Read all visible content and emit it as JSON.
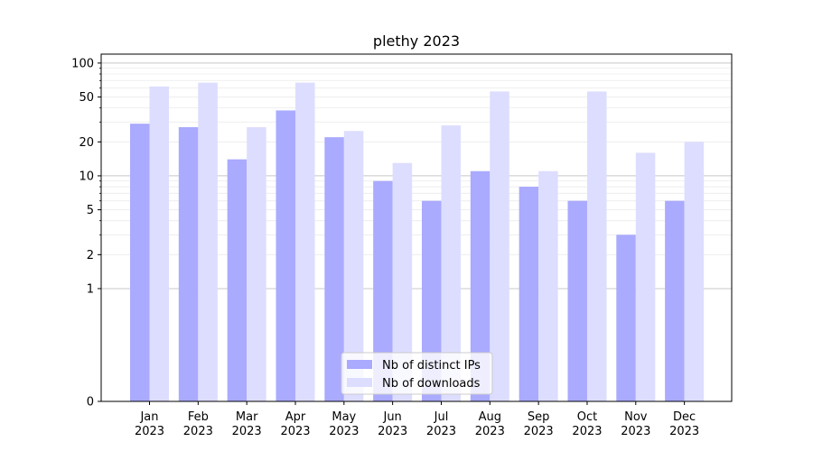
{
  "chart_data": {
    "type": "bar",
    "title": "plethy 2023",
    "xlabel": "",
    "ylabel": "",
    "y_scale": "symlog",
    "ylim": [
      0,
      120
    ],
    "yticks": [
      0,
      1,
      2,
      5,
      10,
      20,
      50,
      100
    ],
    "grid": true,
    "legend_position": "bottom-center",
    "categories": [
      "Jan\n2023",
      "Feb\n2023",
      "Mar\n2023",
      "Apr\n2023",
      "May\n2023",
      "Jun\n2023",
      "Jul\n2023",
      "Aug\n2023",
      "Sep\n2023",
      "Oct\n2023",
      "Nov\n2023",
      "Dec\n2023"
    ],
    "series": [
      {
        "name": "Nb of distinct IPs",
        "color": "#aaaaff",
        "values": [
          29,
          27,
          14,
          38,
          22,
          9,
          6,
          11,
          8,
          6,
          3,
          6
        ]
      },
      {
        "name": "Nb of downloads",
        "color": "#ddddff",
        "values": [
          62,
          67,
          27,
          67,
          25,
          13,
          28,
          56,
          11,
          56,
          16,
          20
        ]
      }
    ]
  }
}
